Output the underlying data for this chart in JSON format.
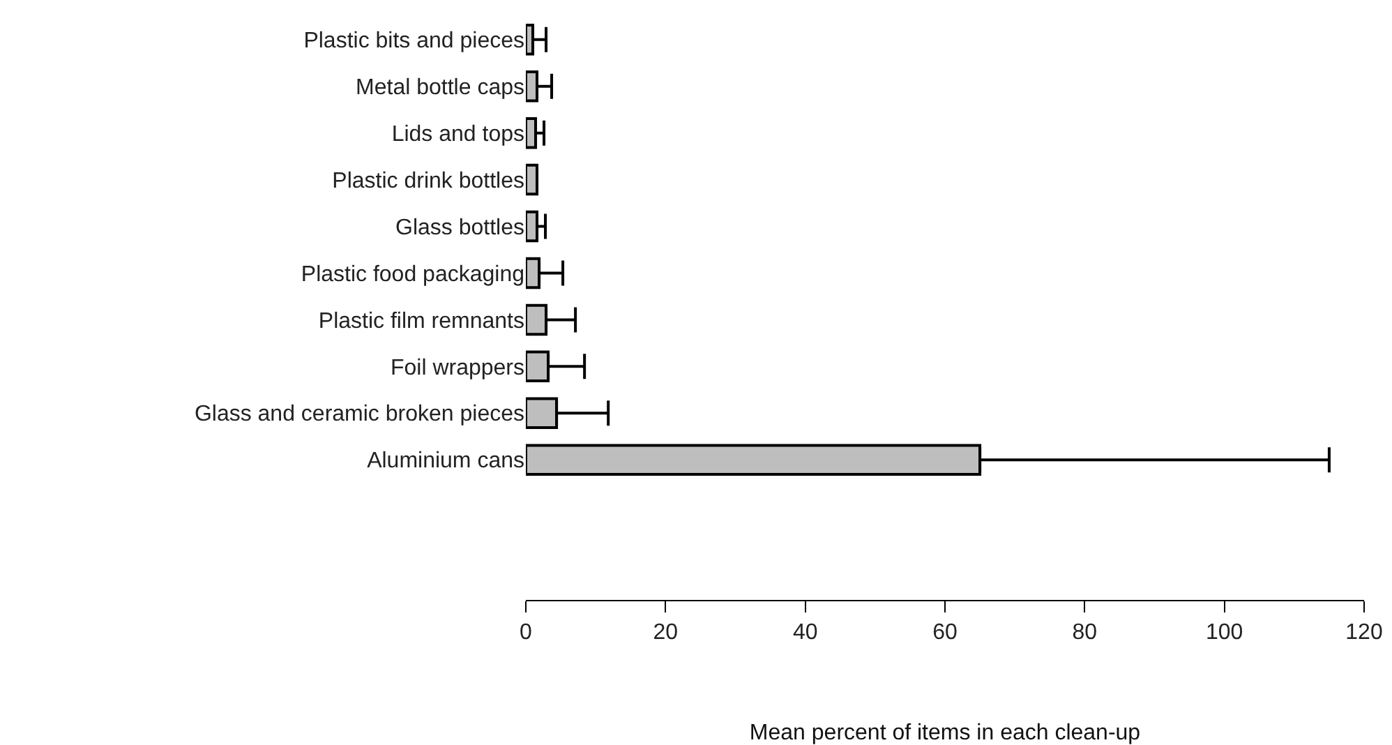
{
  "chart_data": {
    "type": "bar",
    "orientation": "horizontal",
    "xlabel": "Mean percent of items in each clean-up",
    "categories": [
      "Plastic bits and pieces",
      "Metal bottle caps",
      "Lids and tops",
      "Plastic drink bottles",
      "Glass bottles",
      "Plastic food packaging",
      "Plastic film remnants",
      "Foil wrappers",
      "Glass and ceramic broken pieces",
      "Aluminium cans"
    ],
    "values": [
      1.0,
      1.6,
      1.4,
      1.6,
      1.6,
      1.9,
      2.9,
      3.2,
      4.4,
      65
    ],
    "errors": [
      [
        1.0,
        2.9
      ],
      [
        1.6,
        3.7
      ],
      [
        1.4,
        2.6
      ],
      null,
      [
        1.6,
        2.8
      ],
      [
        1.9,
        5.3
      ],
      [
        2.9,
        7.1
      ],
      [
        3.2,
        8.4
      ],
      [
        4.4,
        11.8
      ],
      [
        65,
        115
      ]
    ],
    "color": "#bebebe",
    "xlim": [
      0,
      120
    ],
    "xticks": [
      0,
      20,
      40,
      60,
      80,
      100,
      120
    ]
  }
}
